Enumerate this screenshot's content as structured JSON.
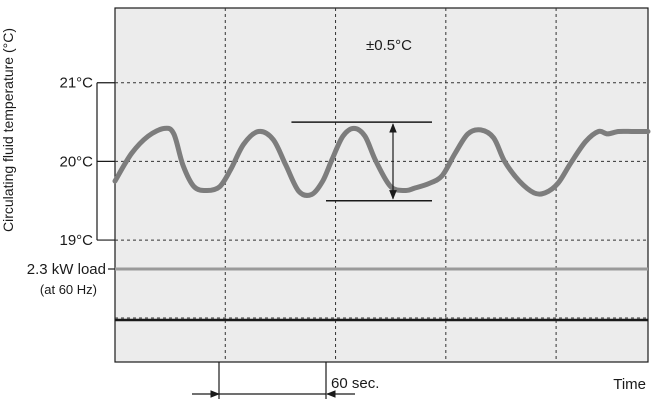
{
  "chart_data": {
    "type": "line",
    "ylabel": "Circulating fluid temperature (°C)",
    "xlabel": "Time",
    "yticks": [
      {
        "value": 21,
        "label": "21°C"
      },
      {
        "value": 20,
        "label": "20°C"
      },
      {
        "value": 19,
        "label": "19°C"
      }
    ],
    "ylim": [
      17.45,
      21.95
    ],
    "xlim": [
      0,
      290
    ],
    "grid": true,
    "x_grid_interval_sec": 60,
    "interval_label": "60 sec.",
    "stability_label": "±0.5°C",
    "stability_band": {
      "x_start": 96,
      "x_end": 178,
      "upper": 20.5,
      "lower": 19.5
    },
    "load": {
      "label": "2.3 kW load",
      "sublabel": "(at 60 Hz)"
    },
    "colors": {
      "temperature_curve": "#7d7d7d",
      "load_line": "#9a9a9a",
      "plot_background": "#ececec",
      "grid": "#333333"
    },
    "series": [
      {
        "x": [
          0,
          9,
          18,
          27,
          32,
          37,
          43,
          50,
          57,
          63,
          70,
          78,
          86,
          93,
          100,
          107,
          113,
          118,
          124,
          130,
          136,
          142,
          150,
          158,
          163,
          171,
          178,
          185,
          192,
          199,
          206,
          212,
          220,
          228,
          234,
          241,
          248,
          256,
          263,
          268,
          274,
          282,
          290
        ],
        "y": [
          19.75,
          20.1,
          20.32,
          20.42,
          20.35,
          19.95,
          19.68,
          19.63,
          19.68,
          19.9,
          20.22,
          20.38,
          20.28,
          19.95,
          19.62,
          19.58,
          19.75,
          20.02,
          20.32,
          20.42,
          20.32,
          20.0,
          19.68,
          19.63,
          19.66,
          19.72,
          19.82,
          20.1,
          20.35,
          20.4,
          20.3,
          20.0,
          19.75,
          19.6,
          19.6,
          19.72,
          19.98,
          20.25,
          20.38,
          20.35,
          20.38,
          20.38,
          20.38
        ]
      }
    ]
  }
}
